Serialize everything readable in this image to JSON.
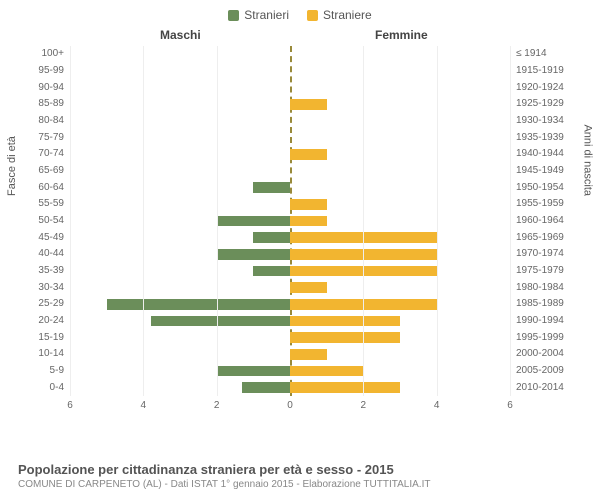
{
  "legend": {
    "male": {
      "label": "Stranieri",
      "color": "#6b8e5a"
    },
    "female": {
      "label": "Straniere",
      "color": "#f2b530"
    }
  },
  "chart": {
    "type": "population-pyramid",
    "left_header": "Maschi",
    "right_header": "Femmine",
    "left_axis_title": "Fasce di età",
    "right_axis_title": "Anni di nascita",
    "grid_color": "#eeeeee",
    "centerline_color": "#998a3a",
    "background_color": "#ffffff",
    "xmax": 6,
    "xticks": [
      6,
      4,
      2,
      0,
      2,
      4,
      6
    ],
    "age_groups": [
      {
        "age": "0-4",
        "birth": "2010-2014",
        "male": 1.3,
        "female": 3
      },
      {
        "age": "5-9",
        "birth": "2005-2009",
        "male": 2,
        "female": 2
      },
      {
        "age": "10-14",
        "birth": "2000-2004",
        "male": 0,
        "female": 1
      },
      {
        "age": "15-19",
        "birth": "1995-1999",
        "male": 0,
        "female": 3
      },
      {
        "age": "20-24",
        "birth": "1990-1994",
        "male": 3.8,
        "female": 3
      },
      {
        "age": "25-29",
        "birth": "1985-1989",
        "male": 5,
        "female": 4
      },
      {
        "age": "30-34",
        "birth": "1980-1984",
        "male": 0,
        "female": 1
      },
      {
        "age": "35-39",
        "birth": "1975-1979",
        "male": 1,
        "female": 4
      },
      {
        "age": "40-44",
        "birth": "1970-1974",
        "male": 2,
        "female": 4
      },
      {
        "age": "45-49",
        "birth": "1965-1969",
        "male": 1,
        "female": 4
      },
      {
        "age": "50-54",
        "birth": "1960-1964",
        "male": 2,
        "female": 1
      },
      {
        "age": "55-59",
        "birth": "1955-1959",
        "male": 0,
        "female": 1
      },
      {
        "age": "60-64",
        "birth": "1950-1954",
        "male": 1,
        "female": 0
      },
      {
        "age": "65-69",
        "birth": "1945-1949",
        "male": 0,
        "female": 0
      },
      {
        "age": "70-74",
        "birth": "1940-1944",
        "male": 0,
        "female": 1
      },
      {
        "age": "75-79",
        "birth": "1935-1939",
        "male": 0,
        "female": 0
      },
      {
        "age": "80-84",
        "birth": "1930-1934",
        "male": 0,
        "female": 0
      },
      {
        "age": "85-89",
        "birth": "1925-1929",
        "male": 0,
        "female": 1
      },
      {
        "age": "90-94",
        "birth": "1920-1924",
        "male": 0,
        "female": 0
      },
      {
        "age": "95-99",
        "birth": "1915-1919",
        "male": 0,
        "female": 0
      },
      {
        "age": "100+",
        "birth": "≤ 1914",
        "male": 0,
        "female": 0
      }
    ]
  },
  "footer": {
    "title": "Popolazione per cittadinanza straniera per età e sesso - 2015",
    "subtitle": "COMUNE DI CARPENETO (AL) - Dati ISTAT 1° gennaio 2015 - Elaborazione TUTTITALIA.IT"
  }
}
